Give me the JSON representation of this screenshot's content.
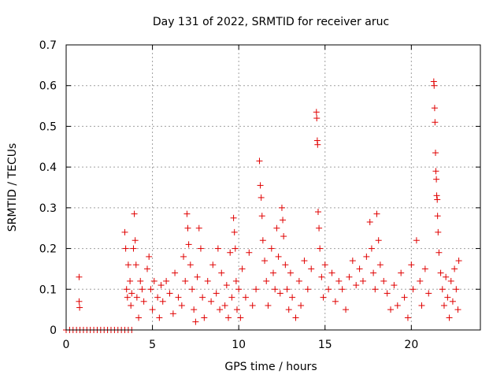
{
  "chart_data": {
    "type": "scatter",
    "title": "Day 131 of 2022, SRMTID for receiver aruc",
    "xlabel": "GPS time / hours",
    "ylabel": "SRMTID / TECUs",
    "xlim": [
      0,
      24
    ],
    "ylim": [
      0,
      0.7
    ],
    "xticks": [
      0,
      5,
      10,
      15,
      20
    ],
    "yticks": [
      0,
      0.1,
      0.2,
      0.3,
      0.4,
      0.5,
      0.6,
      0.7
    ],
    "xtick_labels": [
      "0",
      "5",
      "10",
      "15",
      "20"
    ],
    "ytick_labels": [
      "0",
      "0.1",
      "0.2",
      "0.3",
      "0.4",
      "0.5",
      "0.6",
      "0.7"
    ],
    "grid": true,
    "marker": "+",
    "series": [
      {
        "name": "SRMTID",
        "color": "#e00000",
        "points": [
          [
            0.0,
            0.0
          ],
          [
            0.2,
            0.0
          ],
          [
            0.4,
            0.0
          ],
          [
            0.6,
            0.0
          ],
          [
            0.8,
            0.0
          ],
          [
            1.0,
            0.0
          ],
          [
            1.2,
            0.0
          ],
          [
            1.4,
            0.0
          ],
          [
            1.6,
            0.0
          ],
          [
            1.8,
            0.0
          ],
          [
            2.0,
            0.0
          ],
          [
            2.2,
            0.0
          ],
          [
            2.4,
            0.0
          ],
          [
            2.6,
            0.0
          ],
          [
            2.8,
            0.0
          ],
          [
            3.0,
            0.0
          ],
          [
            3.2,
            0.0
          ],
          [
            3.4,
            0.0
          ],
          [
            3.6,
            0.0
          ],
          [
            3.8,
            0.0
          ],
          [
            0.75,
            0.13
          ],
          [
            0.75,
            0.07
          ],
          [
            0.78,
            0.055
          ],
          [
            3.4,
            0.24
          ],
          [
            3.45,
            0.2
          ],
          [
            3.5,
            0.1
          ],
          [
            3.55,
            0.08
          ],
          [
            3.6,
            0.16
          ],
          [
            3.7,
            0.12
          ],
          [
            3.75,
            0.06
          ],
          [
            3.8,
            0.09
          ],
          [
            3.9,
            0.2
          ],
          [
            3.95,
            0.285
          ],
          [
            4.0,
            0.22
          ],
          [
            4.05,
            0.16
          ],
          [
            4.1,
            0.08
          ],
          [
            4.2,
            0.03
          ],
          [
            4.3,
            0.12
          ],
          [
            4.4,
            0.1
          ],
          [
            4.5,
            0.07
          ],
          [
            4.7,
            0.15
          ],
          [
            4.8,
            0.18
          ],
          [
            4.9,
            0.1
          ],
          [
            5.0,
            0.05
          ],
          [
            5.1,
            0.12
          ],
          [
            5.3,
            0.08
          ],
          [
            5.4,
            0.03
          ],
          [
            5.5,
            0.11
          ],
          [
            5.6,
            0.07
          ],
          [
            5.8,
            0.12
          ],
          [
            6.0,
            0.09
          ],
          [
            6.2,
            0.04
          ],
          [
            6.3,
            0.14
          ],
          [
            6.5,
            0.08
          ],
          [
            6.7,
            0.06
          ],
          [
            6.8,
            0.18
          ],
          [
            6.9,
            0.12
          ],
          [
            7.0,
            0.285
          ],
          [
            7.05,
            0.25
          ],
          [
            7.1,
            0.21
          ],
          [
            7.2,
            0.16
          ],
          [
            7.3,
            0.1
          ],
          [
            7.4,
            0.05
          ],
          [
            7.5,
            0.02
          ],
          [
            7.6,
            0.13
          ],
          [
            7.7,
            0.25
          ],
          [
            7.8,
            0.2
          ],
          [
            7.9,
            0.08
          ],
          [
            8.0,
            0.03
          ],
          [
            8.2,
            0.12
          ],
          [
            8.4,
            0.07
          ],
          [
            8.5,
            0.16
          ],
          [
            8.7,
            0.09
          ],
          [
            8.8,
            0.2
          ],
          [
            8.9,
            0.05
          ],
          [
            9.0,
            0.14
          ],
          [
            9.2,
            0.06
          ],
          [
            9.3,
            0.11
          ],
          [
            9.4,
            0.03
          ],
          [
            9.5,
            0.19
          ],
          [
            9.6,
            0.08
          ],
          [
            9.7,
            0.275
          ],
          [
            9.75,
            0.24
          ],
          [
            9.8,
            0.2
          ],
          [
            9.85,
            0.12
          ],
          [
            9.9,
            0.05
          ],
          [
            10.0,
            0.1
          ],
          [
            10.1,
            0.03
          ],
          [
            10.2,
            0.15
          ],
          [
            10.4,
            0.08
          ],
          [
            10.6,
            0.19
          ],
          [
            10.8,
            0.06
          ],
          [
            11.0,
            0.1
          ],
          [
            11.2,
            0.415
          ],
          [
            11.25,
            0.355
          ],
          [
            11.3,
            0.325
          ],
          [
            11.35,
            0.28
          ],
          [
            11.4,
            0.22
          ],
          [
            11.5,
            0.17
          ],
          [
            11.6,
            0.12
          ],
          [
            11.7,
            0.06
          ],
          [
            11.9,
            0.2
          ],
          [
            12.0,
            0.14
          ],
          [
            12.1,
            0.1
          ],
          [
            12.2,
            0.25
          ],
          [
            12.3,
            0.18
          ],
          [
            12.4,
            0.09
          ],
          [
            12.5,
            0.3
          ],
          [
            12.55,
            0.27
          ],
          [
            12.6,
            0.23
          ],
          [
            12.7,
            0.16
          ],
          [
            12.8,
            0.1
          ],
          [
            12.9,
            0.05
          ],
          [
            13.0,
            0.14
          ],
          [
            13.1,
            0.08
          ],
          [
            13.3,
            0.03
          ],
          [
            13.5,
            0.12
          ],
          [
            13.6,
            0.06
          ],
          [
            13.8,
            0.17
          ],
          [
            14.0,
            0.1
          ],
          [
            14.2,
            0.15
          ],
          [
            14.5,
            0.535
          ],
          [
            14.52,
            0.52
          ],
          [
            14.55,
            0.465
          ],
          [
            14.57,
            0.455
          ],
          [
            14.6,
            0.29
          ],
          [
            14.65,
            0.25
          ],
          [
            14.7,
            0.2
          ],
          [
            14.8,
            0.13
          ],
          [
            14.9,
            0.08
          ],
          [
            15.0,
            0.16
          ],
          [
            15.2,
            0.1
          ],
          [
            15.4,
            0.14
          ],
          [
            15.6,
            0.07
          ],
          [
            15.8,
            0.12
          ],
          [
            16.0,
            0.1
          ],
          [
            16.2,
            0.05
          ],
          [
            16.4,
            0.13
          ],
          [
            16.6,
            0.17
          ],
          [
            16.8,
            0.11
          ],
          [
            17.0,
            0.15
          ],
          [
            17.2,
            0.12
          ],
          [
            17.4,
            0.18
          ],
          [
            17.6,
            0.265
          ],
          [
            17.7,
            0.2
          ],
          [
            17.8,
            0.14
          ],
          [
            17.9,
            0.1
          ],
          [
            18.0,
            0.285
          ],
          [
            18.1,
            0.22
          ],
          [
            18.2,
            0.16
          ],
          [
            18.4,
            0.12
          ],
          [
            18.6,
            0.09
          ],
          [
            18.8,
            0.05
          ],
          [
            19.0,
            0.11
          ],
          [
            19.2,
            0.06
          ],
          [
            19.4,
            0.14
          ],
          [
            19.6,
            0.08
          ],
          [
            19.8,
            0.03
          ],
          [
            20.0,
            0.16
          ],
          [
            20.1,
            0.1
          ],
          [
            20.3,
            0.22
          ],
          [
            20.5,
            0.12
          ],
          [
            20.6,
            0.06
          ],
          [
            20.8,
            0.15
          ],
          [
            21.0,
            0.09
          ],
          [
            21.3,
            0.61
          ],
          [
            21.32,
            0.6
          ],
          [
            21.35,
            0.545
          ],
          [
            21.37,
            0.51
          ],
          [
            21.4,
            0.435
          ],
          [
            21.42,
            0.39
          ],
          [
            21.45,
            0.37
          ],
          [
            21.47,
            0.33
          ],
          [
            21.5,
            0.32
          ],
          [
            21.52,
            0.28
          ],
          [
            21.55,
            0.24
          ],
          [
            21.6,
            0.19
          ],
          [
            21.7,
            0.14
          ],
          [
            21.8,
            0.1
          ],
          [
            21.9,
            0.06
          ],
          [
            22.0,
            0.13
          ],
          [
            22.1,
            0.08
          ],
          [
            22.2,
            0.03
          ],
          [
            22.3,
            0.12
          ],
          [
            22.4,
            0.07
          ],
          [
            22.5,
            0.15
          ],
          [
            22.6,
            0.1
          ],
          [
            22.7,
            0.05
          ],
          [
            22.75,
            0.17
          ]
        ]
      }
    ]
  }
}
